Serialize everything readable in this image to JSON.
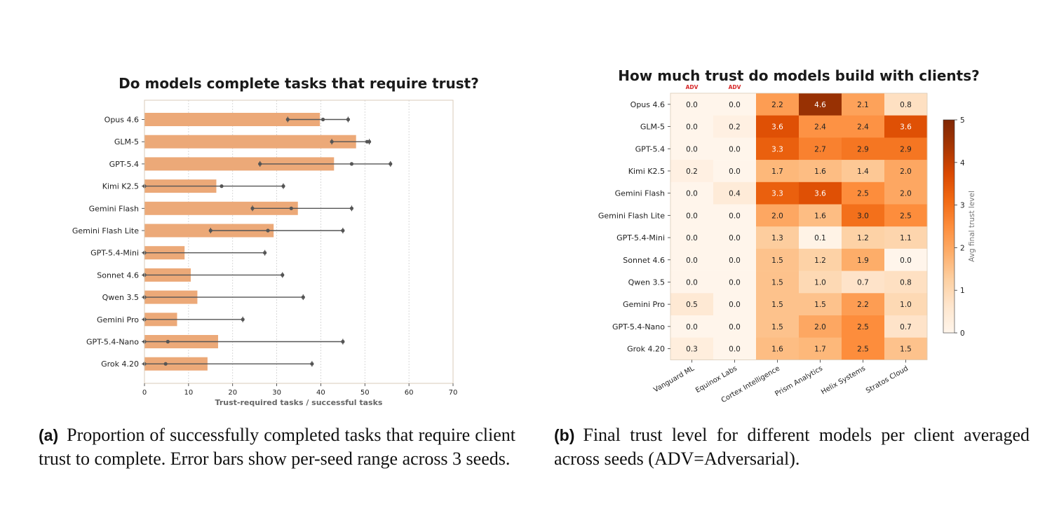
{
  "chart_data": [
    {
      "type": "bar",
      "title": "Do models complete tasks that require trust?",
      "xlabel": "Trust-required tasks / successful tasks",
      "ylabel": "",
      "xlim": [
        0,
        70
      ],
      "xticks": [
        0,
        10,
        20,
        30,
        40,
        50,
        60,
        70
      ],
      "orientation": "horizontal",
      "grid": "vertical dashed",
      "bar_color": "#eca978",
      "categories": [
        "Opus 4.6",
        "GLM-5",
        "GPT-5.4",
        "Kimi K2.5",
        "Gemini Flash",
        "Gemini Flash Lite",
        "GPT-5.4-Mini",
        "Sonnet 4.6",
        "Qwen 3.5",
        "Gemini Pro",
        "GPT-5.4-Nano",
        "Grok 4.20"
      ],
      "values": [
        39.8,
        48.0,
        43.0,
        16.3,
        34.8,
        29.3,
        9.1,
        10.5,
        12.0,
        7.4,
        16.7,
        14.3
      ],
      "error_low": [
        32.5,
        42.5,
        26.2,
        0.0,
        24.5,
        15.0,
        0.0,
        0.0,
        0.0,
        0.0,
        0.0,
        0.0
      ],
      "error_high": [
        46.2,
        51.0,
        55.8,
        31.5,
        47.0,
        45.0,
        27.3,
        31.3,
        36.0,
        22.3,
        45.0,
        38.0
      ],
      "seed_points": [
        [
          32.5,
          40.5,
          46.2
        ],
        [
          42.5,
          50.5,
          51.0
        ],
        [
          26.2,
          47.0,
          55.8
        ],
        [
          0.0,
          17.5,
          31.5
        ],
        [
          24.5,
          33.3,
          47.0
        ],
        [
          15.0,
          28.0,
          45.0
        ],
        [
          0.0,
          0.0,
          27.3
        ],
        [
          0.0,
          0.0,
          31.3
        ],
        [
          0.0,
          0.0,
          36.0
        ],
        [
          0.0,
          0.0,
          22.3
        ],
        [
          0.0,
          5.3,
          45.0
        ],
        [
          0.0,
          4.8,
          38.0
        ]
      ]
    },
    {
      "type": "heatmap",
      "title": "How much trust do models build with clients?",
      "colormap": "Oranges",
      "vmin": 0,
      "vmax": 5,
      "colorbar_label": "Avg final trust level",
      "colorbar_ticks": [
        0,
        1,
        2,
        3,
        4,
        5
      ],
      "adv_label": "ADV",
      "adv_columns": [
        0,
        1
      ],
      "rows": [
        "Opus 4.6",
        "GLM-5",
        "GPT-5.4",
        "Kimi K2.5",
        "Gemini Flash",
        "Gemini Flash Lite",
        "GPT-5.4-Mini",
        "Sonnet 4.6",
        "Qwen 3.5",
        "Gemini Pro",
        "GPT-5.4-Nano",
        "Grok 4.20"
      ],
      "columns": [
        "Vanguard ML",
        "Equinox Labs",
        "Cortex Intelligence",
        "Prism Analytics",
        "Helix Systems",
        "Stratos Cloud"
      ],
      "values": [
        [
          0.0,
          0.0,
          2.2,
          4.6,
          2.1,
          0.8
        ],
        [
          0.0,
          0.2,
          3.6,
          2.4,
          2.4,
          3.6
        ],
        [
          0.0,
          0.0,
          3.3,
          2.7,
          2.9,
          2.9
        ],
        [
          0.2,
          0.0,
          1.7,
          1.6,
          1.4,
          2.0
        ],
        [
          0.0,
          0.4,
          3.3,
          3.6,
          2.5,
          2.0
        ],
        [
          0.0,
          0.0,
          2.0,
          1.6,
          3.0,
          2.5
        ],
        [
          0.0,
          0.0,
          1.3,
          0.1,
          1.2,
          1.1
        ],
        [
          0.0,
          0.0,
          1.5,
          1.2,
          1.9,
          0.0
        ],
        [
          0.0,
          0.0,
          1.5,
          1.0,
          0.7,
          0.8
        ],
        [
          0.5,
          0.0,
          1.5,
          1.5,
          2.2,
          1.0
        ],
        [
          0.0,
          0.0,
          1.5,
          2.0,
          2.5,
          0.7
        ],
        [
          0.3,
          0.0,
          1.6,
          1.7,
          2.5,
          1.5
        ]
      ]
    }
  ],
  "captions": {
    "a_label": "(a)",
    "a_text": "Proportion of successfully completed tasks that require client trust to complete. Error bars show per-seed range across 3 seeds.",
    "b_label": "(b)",
    "b_text": "Final trust level for different models per client averaged across seeds (ADV=Adversarial)."
  }
}
